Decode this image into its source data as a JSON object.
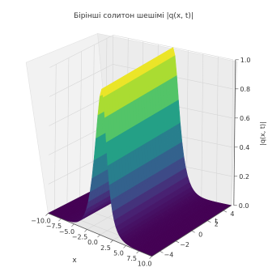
{
  "chart_data": {
    "type": "surface3d",
    "title": "Бірінші солитон шешімі |q(x, t)|",
    "xlabel": "x",
    "ylabel": "t",
    "zlabel": "|q(x, t)|",
    "xlim": [
      -10,
      10
    ],
    "ylim": [
      -5,
      5
    ],
    "zlim": [
      0,
      1
    ],
    "x_ticks": [
      "−10.0",
      "−7.5",
      "−5.0",
      "−2.5",
      "0.0",
      "2.5",
      "5.0",
      "7.5",
      "10.0"
    ],
    "y_ticks": [
      "−4",
      "−2",
      "0",
      "2",
      "4"
    ],
    "z_ticks": [
      "0.0",
      "0.2",
      "0.4",
      "0.6",
      "0.8",
      "1.0"
    ],
    "surface": {
      "formula": "|q(x,t)| = sech(x)",
      "amplitude": 1.0,
      "center_x": 0.0,
      "colormap": "viridis"
    }
  }
}
